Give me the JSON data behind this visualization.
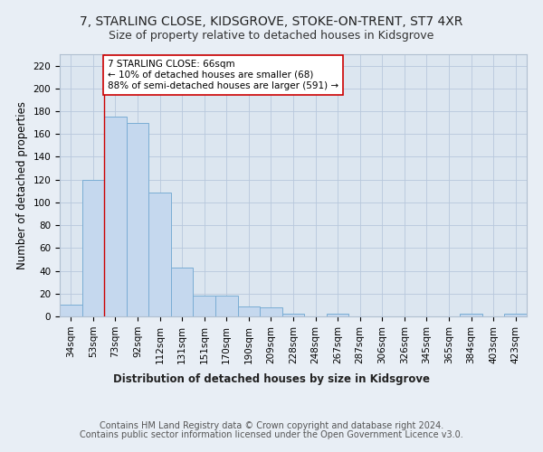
{
  "title1": "7, STARLING CLOSE, KIDSGROVE, STOKE-ON-TRENT, ST7 4XR",
  "title2": "Size of property relative to detached houses in Kidsgrove",
  "xlabel": "Distribution of detached houses by size in Kidsgrove",
  "ylabel": "Number of detached properties",
  "categories": [
    "34sqm",
    "53sqm",
    "73sqm",
    "92sqm",
    "112sqm",
    "131sqm",
    "151sqm",
    "170sqm",
    "190sqm",
    "209sqm",
    "228sqm",
    "248sqm",
    "267sqm",
    "287sqm",
    "306sqm",
    "326sqm",
    "345sqm",
    "365sqm",
    "384sqm",
    "403sqm",
    "423sqm"
  ],
  "values": [
    10,
    120,
    175,
    170,
    109,
    43,
    18,
    18,
    9,
    8,
    2,
    0,
    2,
    0,
    0,
    0,
    0,
    0,
    2,
    0,
    2
  ],
  "bar_color": "#c5d8ee",
  "bar_edge_color": "#7aadd4",
  "vline_x": 1.5,
  "vline_color": "#cc0000",
  "annotation_text": "7 STARLING CLOSE: 66sqm\n← 10% of detached houses are smaller (68)\n88% of semi-detached houses are larger (591) →",
  "annotation_box_color": "#ffffff",
  "annotation_box_edge": "#cc0000",
  "ylim": [
    0,
    230
  ],
  "yticks": [
    0,
    20,
    40,
    60,
    80,
    100,
    120,
    140,
    160,
    180,
    200,
    220
  ],
  "footer1": "Contains HM Land Registry data © Crown copyright and database right 2024.",
  "footer2": "Contains public sector information licensed under the Open Government Licence v3.0.",
  "bg_color": "#e8eef5",
  "plot_bg_color": "#dce6f0",
  "title1_fontsize": 10,
  "title2_fontsize": 9,
  "axis_label_fontsize": 8.5,
  "tick_fontsize": 7.5,
  "footer_fontsize": 7
}
